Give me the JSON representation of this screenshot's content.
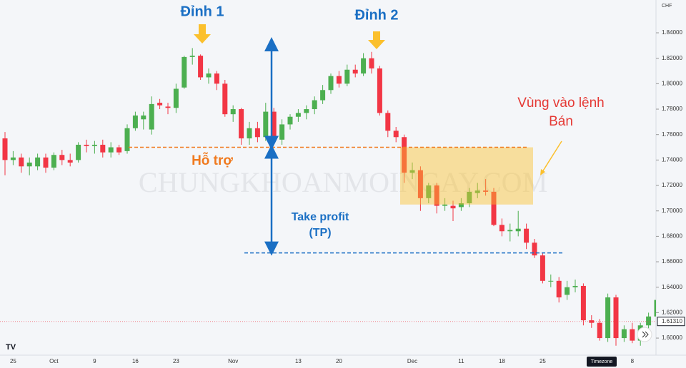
{
  "chart_data": {
    "type": "candlestick",
    "currency": "CHF",
    "watermark": "CHUNGKHOANMOINGAY.COM",
    "up_color": "#4caf50",
    "down_color": "#f23645",
    "categories": [
      null,
      "25",
      null,
      null,
      null,
      null,
      "Oct",
      null,
      null,
      null,
      null,
      "9",
      null,
      null,
      null,
      null,
      "16",
      null,
      null,
      null,
      null,
      "23",
      null,
      null,
      null,
      null,
      null,
      null,
      "Nov",
      null,
      null,
      null,
      null,
      null,
      null,
      null,
      "13",
      null,
      null,
      null,
      null,
      "20",
      null,
      null,
      null,
      null,
      null,
      null,
      null,
      null,
      "Dec",
      null,
      null,
      null,
      null,
      null,
      "11",
      null,
      null,
      null,
      null,
      "18",
      null,
      null,
      null,
      null,
      "25",
      null,
      null,
      null,
      null,
      null,
      null,
      null,
      null,
      null,
      null,
      "8",
      null,
      null,
      null,
      null
    ],
    "open": [
      1.757,
      1.74,
      1.742,
      1.735,
      1.735,
      1.742,
      1.734,
      1.744,
      1.74,
      1.74,
      1.752,
      1.751,
      1.752,
      1.746,
      1.75,
      1.747,
      1.765,
      1.772,
      1.764,
      1.785,
      1.782,
      1.781,
      1.797,
      1.821,
      1.822,
      1.805,
      1.808,
      1.8,
      1.776,
      1.78,
      1.757,
      1.765,
      1.758,
      1.778,
      1.756,
      1.768,
      1.774,
      1.777,
      1.78,
      1.787,
      1.795,
      1.806,
      1.8,
      1.811,
      1.808,
      1.82,
      1.812,
      1.777,
      1.763,
      1.758,
      1.73,
      1.732,
      1.71,
      1.72,
      1.704,
      1.704,
      1.703,
      1.706,
      1.714,
      1.716,
      1.715,
      1.689,
      1.684,
      1.684,
      1.686,
      1.675,
      1.665,
      1.645,
      1.645,
      1.634,
      1.64,
      1.641,
      1.614,
      1.612,
      1.6,
      1.632,
      1.6,
      1.607,
      1.598,
      1.61,
      1.617,
      1.63
    ],
    "high": [
      1.762,
      1.747,
      1.745,
      1.742,
      1.745,
      1.745,
      1.746,
      1.748,
      1.745,
      1.754,
      1.756,
      1.755,
      1.756,
      1.754,
      1.752,
      1.768,
      1.778,
      1.778,
      1.79,
      1.788,
      1.785,
      1.8,
      1.822,
      1.828,
      1.823,
      1.812,
      1.81,
      1.803,
      1.783,
      1.781,
      1.77,
      1.77,
      1.785,
      1.781,
      1.772,
      1.776,
      1.78,
      1.783,
      1.79,
      1.799,
      1.808,
      1.81,
      1.815,
      1.815,
      1.824,
      1.825,
      1.814,
      1.779,
      1.766,
      1.76,
      1.738,
      1.735,
      1.722,
      1.722,
      1.71,
      1.708,
      1.71,
      1.718,
      1.722,
      1.725,
      1.718,
      1.694,
      1.69,
      1.7,
      1.69,
      1.678,
      1.667,
      1.65,
      1.648,
      1.645,
      1.646,
      1.643,
      1.618,
      1.615,
      1.635,
      1.634,
      1.61,
      1.612,
      1.612,
      1.62,
      1.632,
      1.632
    ],
    "low": [
      1.728,
      1.736,
      1.73,
      1.728,
      1.732,
      1.73,
      1.732,
      1.736,
      1.735,
      1.738,
      1.746,
      1.745,
      1.742,
      1.742,
      1.744,
      1.745,
      1.763,
      1.764,
      1.76,
      1.78,
      1.776,
      1.777,
      1.796,
      1.815,
      1.803,
      1.8,
      1.795,
      1.774,
      1.77,
      1.752,
      1.752,
      1.754,
      1.755,
      1.753,
      1.752,
      1.764,
      1.77,
      1.772,
      1.776,
      1.784,
      1.792,
      1.797,
      1.798,
      1.805,
      1.806,
      1.808,
      1.775,
      1.758,
      1.754,
      1.722,
      1.725,
      1.7,
      1.706,
      1.698,
      1.7,
      1.692,
      1.7,
      1.703,
      1.71,
      1.712,
      1.688,
      1.68,
      1.676,
      1.68,
      1.67,
      1.663,
      1.643,
      1.64,
      1.628,
      1.63,
      1.636,
      1.61,
      1.608,
      1.598,
      1.597,
      1.594,
      1.597,
      1.596,
      1.594,
      1.604,
      1.614,
      1.612
    ],
    "close": [
      1.74,
      1.742,
      1.735,
      1.738,
      1.742,
      1.734,
      1.744,
      1.74,
      1.738,
      1.752,
      1.751,
      1.752,
      1.746,
      1.75,
      1.746,
      1.765,
      1.775,
      1.775,
      1.784,
      1.783,
      1.781,
      1.796,
      1.821,
      1.822,
      1.805,
      1.808,
      1.8,
      1.776,
      1.78,
      1.757,
      1.765,
      1.758,
      1.778,
      1.756,
      1.768,
      1.774,
      1.777,
      1.78,
      1.787,
      1.795,
      1.806,
      1.8,
      1.811,
      1.808,
      1.82,
      1.812,
      1.777,
      1.763,
      1.758,
      1.73,
      1.732,
      1.71,
      1.72,
      1.704,
      1.705,
      1.702,
      1.706,
      1.715,
      1.716,
      1.715,
      1.689,
      1.684,
      1.685,
      1.686,
      1.675,
      1.665,
      1.645,
      1.645,
      1.632,
      1.64,
      1.641,
      1.614,
      1.612,
      1.6,
      1.632,
      1.6,
      1.607,
      1.598,
      1.61,
      1.617,
      1.63,
      1.616
    ],
    "ylim": [
      1.5877,
      1.8658
    ],
    "yticks": [
      {
        "value": 1.6,
        "label": "1.60000"
      },
      {
        "value": 1.62,
        "label": "1.62000"
      },
      {
        "value": 1.64,
        "label": "1.64000"
      },
      {
        "value": 1.66,
        "label": "1.66000"
      },
      {
        "value": 1.68,
        "label": "1.68000"
      },
      {
        "value": 1.7,
        "label": "1.70000"
      },
      {
        "value": 1.72,
        "label": "1.72000"
      },
      {
        "value": 1.74,
        "label": "1.74000"
      },
      {
        "value": 1.76,
        "label": "1.76000"
      },
      {
        "value": 1.78,
        "label": "1.78000"
      },
      {
        "value": 1.8,
        "label": "1.80000"
      },
      {
        "value": 1.82,
        "label": "1.82000"
      },
      {
        "value": 1.84,
        "label": "1.84000"
      }
    ],
    "last_price": {
      "value": 1.6131,
      "label": "1.61310"
    },
    "support_level": 1.75,
    "take_profit_level": 1.667,
    "entry_zone": [
      1.705,
      1.75
    ],
    "annotations": {
      "peak1": "Đỉnh 1",
      "peak2": "Đỉnh 2",
      "support": "Hỗ trợ",
      "tp1": "Take profit",
      "tp2": "(TP)",
      "zone1": "Vùng vào lệnh",
      "zone2": "Bán",
      "timezone": "Timezone"
    }
  }
}
